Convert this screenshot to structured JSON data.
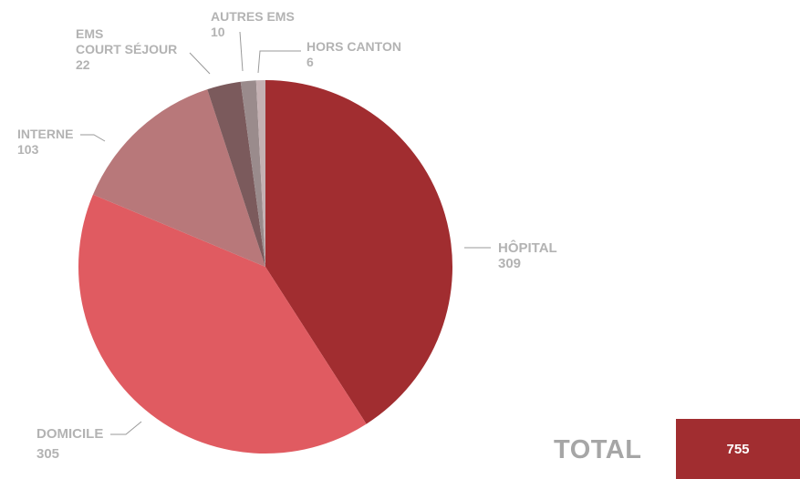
{
  "chart_data": {
    "type": "pie",
    "slices": [
      {
        "label": "HÔPITAL",
        "value": 309,
        "color": "#a12d30"
      },
      {
        "label": "DOMICILE",
        "value": 305,
        "color": "#e05b61"
      },
      {
        "label": "INTERNE",
        "value": 103,
        "color": "#b8787a"
      },
      {
        "label": "EMS\nCOURT SÉJOUR",
        "value": 22,
        "color": "#7b5a5c"
      },
      {
        "label": "AUTRES EMS",
        "value": 10,
        "color": "#9a8b8c"
      },
      {
        "label": "HORS CANTON",
        "value": 6,
        "color": "#c4b1b3"
      }
    ],
    "total_label": "TOTAL",
    "total_value": "755",
    "total_color": "#a12d30"
  }
}
